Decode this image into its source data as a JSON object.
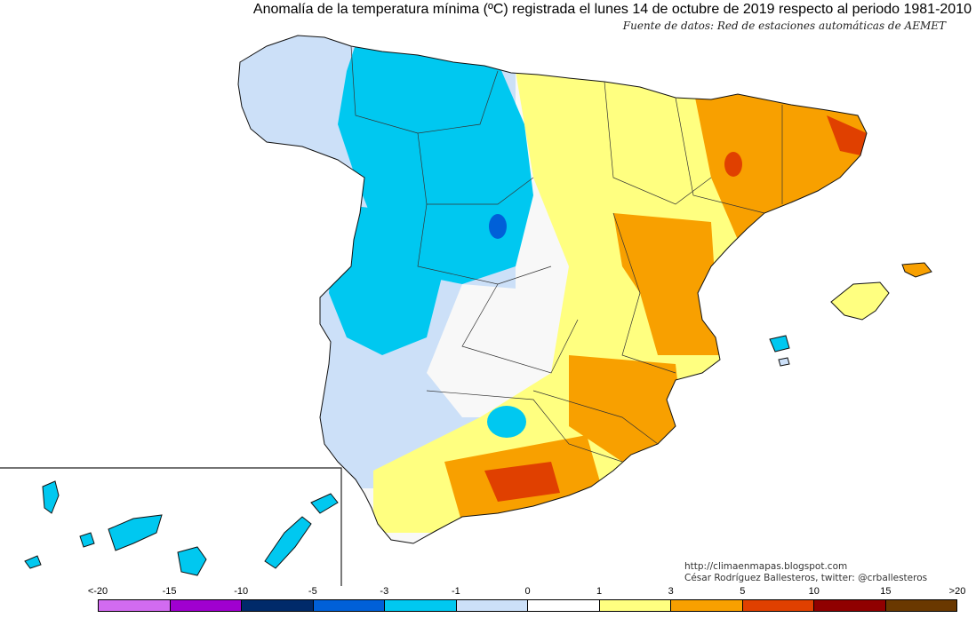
{
  "header": {
    "title": "Anomalía de la temperatura mínima (ºC) registrada el lunes 14 de octubre de 2019 respecto al periodo 1981-2010",
    "source": "Fuente de datos: Red de estaciones automáticas de AEMET"
  },
  "credits": {
    "blog": "http://climaenmapas.blogspot.com",
    "author": "César Rodríguez Ballesteros, twitter: @crballesteros"
  },
  "legend": {
    "labels": [
      "<-20",
      "-15",
      "-10",
      "-5",
      "-3",
      "-1",
      "0",
      "1",
      "3",
      "5",
      "10",
      "15",
      ">20"
    ],
    "colors": [
      "#d26bf0",
      "#a000d0",
      "#002a6a",
      "#0060d8",
      "#00c8f0",
      "#cce0f8",
      "#ffffff",
      "#ffff80",
      "#f8a000",
      "#e04000",
      "#900000",
      "#6a3800"
    ]
  },
  "palette": {
    "cold_light": "#cce0f8",
    "cold": "#00c8f0",
    "cold_strong": "#0060d8",
    "neutral": "#f8f8f8",
    "warm_light": "#ffff80",
    "warm": "#f8a000",
    "warm_strong": "#e04000"
  }
}
